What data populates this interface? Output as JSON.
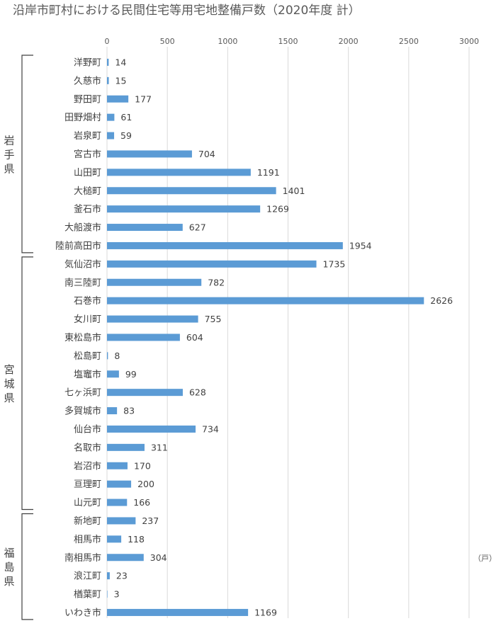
{
  "chart_data": {
    "type": "bar",
    "orientation": "horizontal",
    "title": "沿岸市町村における民間住宅等用宅地整備戸数（2020年度 計）",
    "unit_label": "（戸）",
    "xlim": [
      0,
      3000
    ],
    "xticks": [
      0,
      500,
      1000,
      1500,
      2000,
      2500,
      3000
    ],
    "grid": true,
    "bar_color": "#5b9bd5",
    "categories": [
      "洋野町",
      "久慈市",
      "野田町",
      "田野畑村",
      "岩泉町",
      "宮古市",
      "山田町",
      "大槌町",
      "釜石市",
      "大船渡市",
      "陸前高田市",
      "気仙沼市",
      "南三陸町",
      "石巻市",
      "女川町",
      "東松島市",
      "松島町",
      "塩竈市",
      "七ヶ浜町",
      "多賀城市",
      "仙台市",
      "名取市",
      "岩沼市",
      "亘理町",
      "山元町",
      "新地町",
      "相馬市",
      "南相馬市",
      "浪江町",
      "楢葉町",
      "いわき市"
    ],
    "values": [
      14,
      15,
      177,
      61,
      59,
      704,
      1191,
      1401,
      1269,
      627,
      1954,
      1735,
      782,
      2626,
      755,
      604,
      8,
      99,
      628,
      83,
      734,
      311,
      170,
      200,
      166,
      237,
      118,
      304,
      23,
      3,
      1169
    ],
    "groups": [
      {
        "label": "岩手県",
        "start": 0,
        "end": 10
      },
      {
        "label": "宮城県",
        "start": 11,
        "end": 24
      },
      {
        "label": "福島県",
        "start": 25,
        "end": 30
      }
    ]
  }
}
